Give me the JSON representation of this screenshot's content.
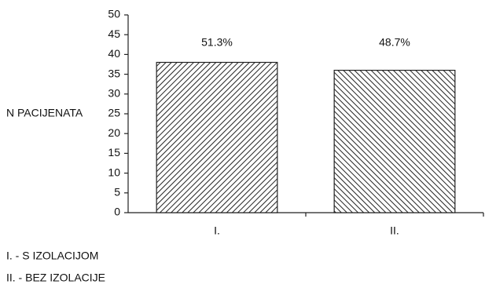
{
  "chart_data": {
    "type": "bar",
    "y_label": "N PACIJENATA",
    "categories": [
      "I.",
      "II."
    ],
    "values": [
      38,
      36
    ],
    "annotations": [
      "51.3%",
      "48.7%"
    ],
    "color": "#222222",
    "ylim": [
      0,
      50
    ],
    "yticks": [
      0,
      5,
      10,
      15,
      20,
      25,
      30,
      35,
      40,
      45,
      50
    ],
    "notes": [
      "I. - S IZOLACIJOM",
      "II. - BEZ IZOLACIJE"
    ]
  }
}
